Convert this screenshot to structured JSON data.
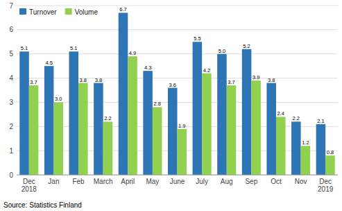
{
  "chart_data": {
    "type": "bar",
    "categories": [
      "Dec\n2018",
      "Jan",
      "Feb",
      "March",
      "April",
      "May",
      "June",
      "July",
      "Aug",
      "Sep",
      "Oct",
      "Nov",
      "Dec\n2019"
    ],
    "series": [
      {
        "name": "Turnover",
        "color": "#2e75b6",
        "values": [
          5.1,
          4.5,
          5.1,
          3.8,
          6.7,
          4.3,
          3.6,
          5.5,
          5.0,
          5.2,
          3.8,
          2.2,
          2.1
        ],
        "value_labels": [
          "5.1",
          "4.5",
          "5.1",
          "3.8",
          "6.7",
          "4.3",
          "3.6",
          "5.5",
          "5.0",
          "5.2",
          "3.8",
          "2.2",
          "2.1"
        ]
      },
      {
        "name": "Volume",
        "color": "#92d050",
        "values": [
          3.7,
          3.0,
          3.8,
          2.2,
          4.9,
          2.8,
          1.9,
          4.2,
          3.7,
          3.9,
          2.4,
          1.2,
          0.8
        ],
        "value_labels": [
          "3.7",
          "3.0",
          "3.8",
          "2.2",
          "4.9",
          "2.8",
          "1.9",
          "4.2",
          "3.7",
          "3.9",
          "2.4",
          "1.2",
          "0.8"
        ]
      }
    ],
    "ylim": [
      0,
      7
    ],
    "yticks": [
      0,
      1,
      2,
      3,
      4,
      5,
      6,
      7
    ],
    "grid": true,
    "legend": "upper left",
    "data_labels": true,
    "annotations": [
      "Source: Statistics Finland"
    ]
  }
}
